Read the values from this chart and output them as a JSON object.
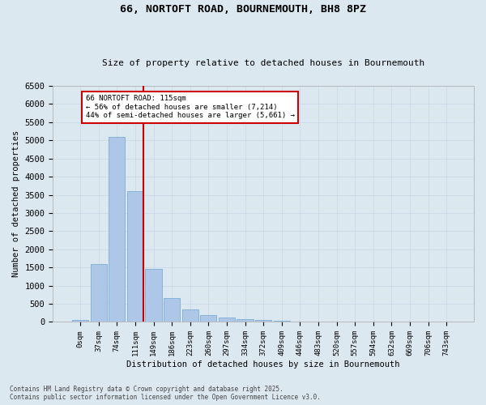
{
  "title": "66, NORTOFT ROAD, BOURNEMOUTH, BH8 8PZ",
  "subtitle": "Size of property relative to detached houses in Bournemouth",
  "xlabel": "Distribution of detached houses by size in Bournemouth",
  "ylabel": "Number of detached properties",
  "bar_labels": [
    "0sqm",
    "37sqm",
    "74sqm",
    "111sqm",
    "149sqm",
    "186sqm",
    "223sqm",
    "260sqm",
    "297sqm",
    "334sqm",
    "372sqm",
    "409sqm",
    "446sqm",
    "483sqm",
    "520sqm",
    "557sqm",
    "594sqm",
    "632sqm",
    "669sqm",
    "706sqm",
    "743sqm"
  ],
  "bar_values": [
    50,
    1600,
    5100,
    3600,
    1450,
    650,
    350,
    200,
    130,
    80,
    55,
    30,
    20,
    10,
    5,
    3,
    2,
    1,
    1,
    0,
    0
  ],
  "bar_color": "#aec6e8",
  "bar_edge_color": "#7aadd4",
  "vline_color": "#cc0000",
  "annotation_text": "66 NORTOFT ROAD: 115sqm\n← 56% of detached houses are smaller (7,214)\n44% of semi-detached houses are larger (5,661) →",
  "annotation_box_color": "#ffffff",
  "annotation_box_edgecolor": "#cc0000",
  "ylim": [
    0,
    6500
  ],
  "yticks": [
    0,
    500,
    1000,
    1500,
    2000,
    2500,
    3000,
    3500,
    4000,
    4500,
    5000,
    5500,
    6000,
    6500
  ],
  "grid_color": "#c8d8e8",
  "bg_color": "#dce8f0",
  "fig_bg_color": "#dce8f0",
  "footer": "Contains HM Land Registry data © Crown copyright and database right 2025.\nContains public sector information licensed under the Open Government Licence v3.0."
}
